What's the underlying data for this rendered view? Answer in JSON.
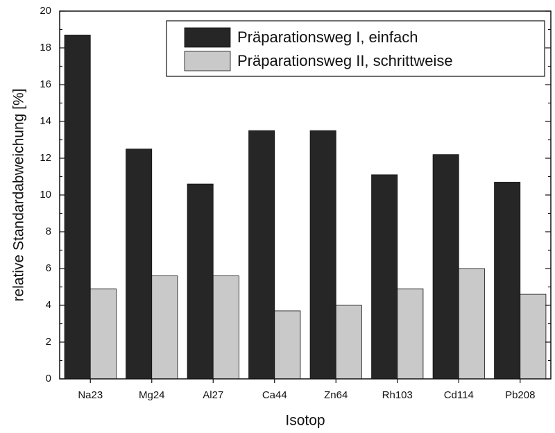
{
  "chart_data": {
    "type": "bar",
    "x_label": "Isotop",
    "y_label": "relative Standardabweichung [%]",
    "categories": [
      "Na23",
      "Mg24",
      "Al27",
      "Ca44",
      "Zn64",
      "Rh103",
      "Cd114",
      "Pb208"
    ],
    "series": [
      {
        "name": "Präparationsweg I, einfach",
        "color": "#262626",
        "values": [
          18.7,
          12.5,
          10.6,
          13.5,
          13.5,
          11.1,
          12.2,
          10.7
        ]
      },
      {
        "name": "Präparationsweg II, schrittweise",
        "color": "#c9c9c9",
        "values": [
          4.9,
          5.6,
          5.6,
          3.7,
          4.0,
          4.9,
          6.0,
          4.6
        ]
      }
    ],
    "ylim": [
      0,
      20
    ],
    "yticks": [
      0,
      2,
      4,
      6,
      8,
      10,
      12,
      14,
      16,
      18,
      20
    ],
    "legend": "top-right"
  }
}
